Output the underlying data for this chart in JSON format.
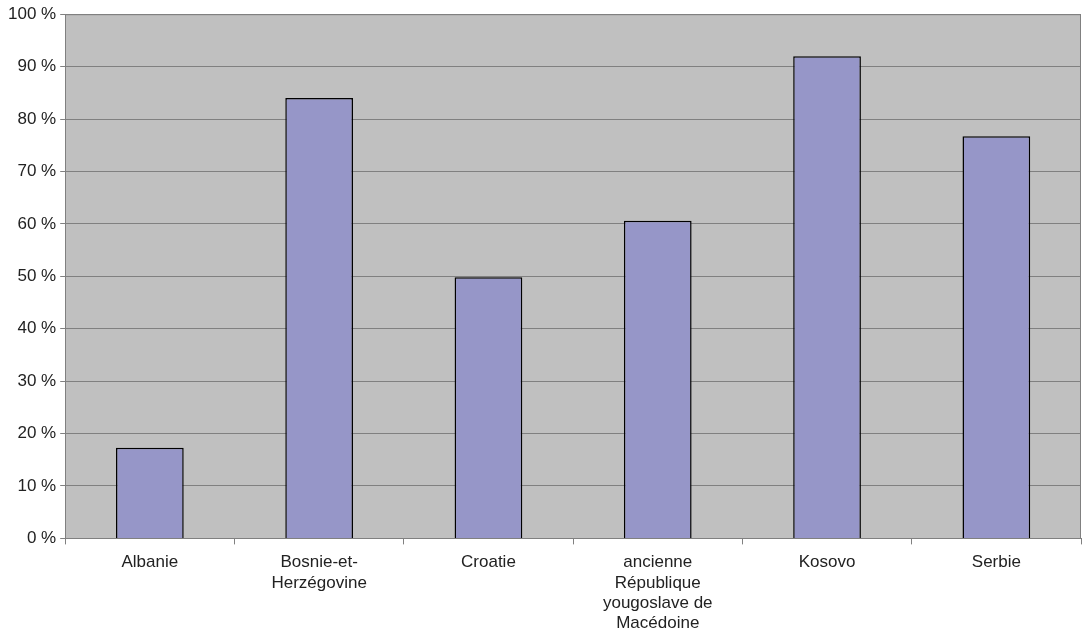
{
  "chart_data": {
    "type": "bar",
    "categories": [
      "Albanie",
      "Bosnie-et-Herzégovine",
      "Croatie",
      "ancienne République yougoslave de Macédoine",
      "Kosovo",
      "Serbie"
    ],
    "values": [
      17.3,
      84,
      49.8,
      60.6,
      92,
      76.7
    ],
    "color": "#9696c8",
    "ylim": [
      0,
      100
    ],
    "yticks": [
      {
        "value": 0,
        "label": "0 %"
      },
      {
        "value": 10,
        "label": "10 %"
      },
      {
        "value": 20,
        "label": "20 %"
      },
      {
        "value": 30,
        "label": "30 %"
      },
      {
        "value": 40,
        "label": "40 %"
      },
      {
        "value": 50,
        "label": "50 %"
      },
      {
        "value": 60,
        "label": "60 %"
      },
      {
        "value": 70,
        "label": "70 %"
      },
      {
        "value": 80,
        "label": "80 %"
      },
      {
        "value": 90,
        "label": "90 %"
      },
      {
        "value": 100,
        "label": "100 %"
      }
    ],
    "grid": "y"
  }
}
